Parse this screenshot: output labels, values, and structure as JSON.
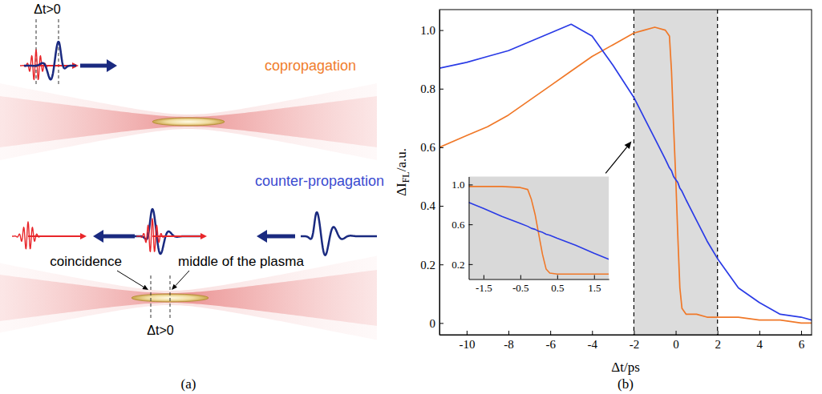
{
  "diagram": {
    "copropagation": {
      "label": "copropagation",
      "delay": "Δt>0"
    },
    "counter_propagation": {
      "label": "counter-propagation",
      "delay": "Δt>0",
      "coincidence": "coincidence",
      "plasma_middle": "middle of the plasma"
    },
    "panel_label": "(a)"
  },
  "chart_data": [
    {
      "type": "line",
      "x": [
        -11.3,
        -10,
        -9,
        -8,
        -7,
        -6,
        -5,
        -4,
        -3,
        -2,
        -1.5,
        -1,
        -0.5,
        -0.3,
        -0.2,
        -0.1,
        0,
        0.1,
        0.2,
        0.3,
        0.5,
        1,
        1.5,
        2,
        3,
        4,
        5,
        6,
        6.5
      ],
      "series": [
        {
          "color": "#f07828",
          "values": [
            0.6,
            0.64,
            0.67,
            0.71,
            0.76,
            0.81,
            0.86,
            0.91,
            0.95,
            0.99,
            1.0,
            1.01,
            1.0,
            0.98,
            0.86,
            0.67,
            0.5,
            0.3,
            0.12,
            0.05,
            0.03,
            0.03,
            0.02,
            0.02,
            0.02,
            0.01,
            0.01,
            0,
            0
          ]
        },
        {
          "color": "#2a3be6",
          "values": [
            0.87,
            0.89,
            0.91,
            0.93,
            0.96,
            0.99,
            1.02,
            0.98,
            0.88,
            0.77,
            0.7,
            0.63,
            0.56,
            0.53,
            0.52,
            0.5,
            0.49,
            0.48,
            0.46,
            0.45,
            0.42,
            0.35,
            0.28,
            0.22,
            0.12,
            0.07,
            0.03,
            0.02,
            0.01
          ]
        }
      ],
      "x_label": "Δt/ps",
      "y_label": {
        "text": "ΔI",
        "subscript": "FL",
        "suffix": "/a.u."
      },
      "xlim": [
        -11.3,
        6.5
      ],
      "ylim": [
        -0.04,
        1.07
      ],
      "xticks": [
        -10,
        -8,
        -6,
        -4,
        -2,
        0,
        2,
        4,
        6
      ],
      "yticks": [
        0,
        0.2,
        0.4,
        0.6,
        0.8,
        {
          "value": 1,
          "label": "1.0"
        }
      ],
      "shaded_x_range": [
        -2,
        2
      ],
      "panel_label": "(b)"
    },
    {
      "type": "line",
      "x": [
        -1.9,
        -1.5,
        -1,
        -0.5,
        -0.3,
        -0.2,
        -0.1,
        0,
        0.1,
        0.2,
        0.3,
        0.5,
        1,
        1.5,
        1.9
      ],
      "series": [
        {
          "color": "#f07828",
          "values": [
            0.98,
            0.98,
            0.98,
            0.97,
            0.95,
            0.85,
            0.7,
            0.5,
            0.3,
            0.15,
            0.11,
            0.1,
            0.1,
            0.1,
            0.1
          ]
        },
        {
          "color": "#2a3be6",
          "values": [
            0.82,
            0.76,
            0.68,
            0.61,
            0.58,
            0.56,
            0.55,
            0.53,
            0.52,
            0.5,
            0.49,
            0.46,
            0.39,
            0.31,
            0.25
          ]
        }
      ],
      "xlim": [
        -1.9,
        1.9
      ],
      "ylim": [
        0.05,
        1.08
      ],
      "xticks": [
        -1.5,
        -0.5,
        0.5,
        1.5
      ],
      "yticks": [
        0.2,
        0.6,
        {
          "value": 1,
          "label": "1.0"
        }
      ]
    }
  ]
}
